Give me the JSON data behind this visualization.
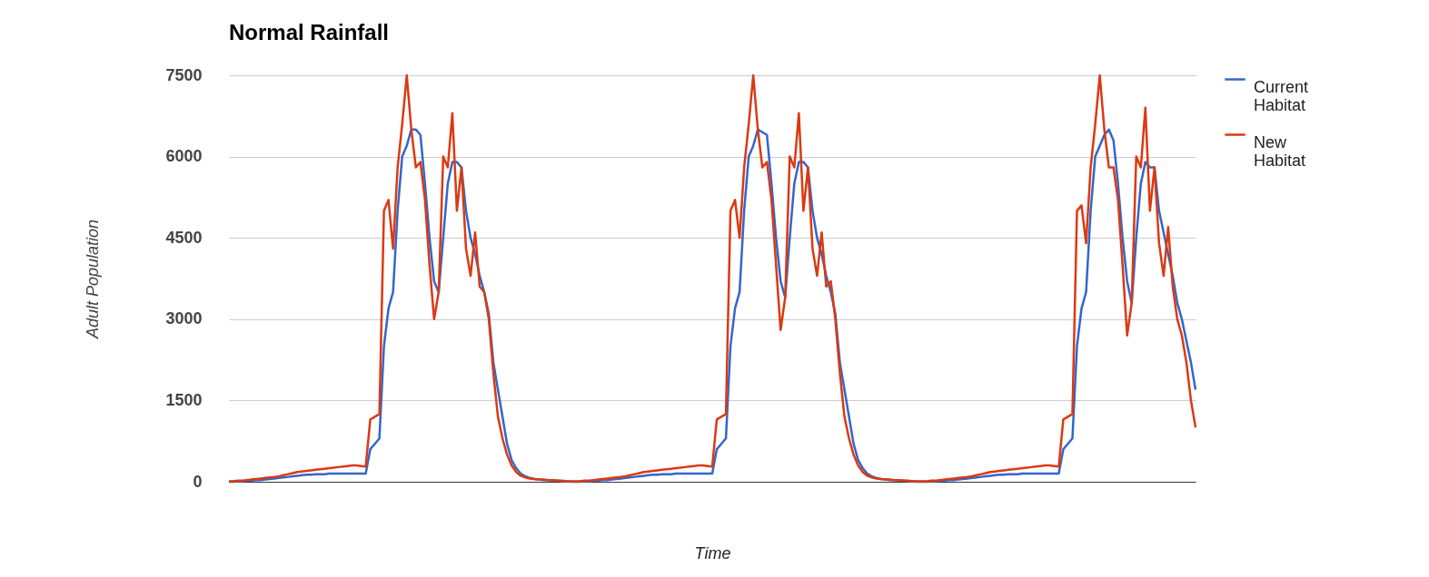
{
  "chart_data": {
    "type": "line",
    "title": "Normal Rainfall",
    "xlabel": "Time",
    "ylabel": "Adult Population",
    "categories": [
      null,
      null,
      null,
      null,
      null,
      null,
      null,
      null,
      null,
      null,
      null,
      null,
      null,
      null,
      null,
      null,
      null,
      null,
      null,
      null,
      null,
      null,
      null,
      null,
      null,
      null,
      null,
      null,
      null,
      null,
      null,
      null,
      null,
      null,
      null,
      null,
      null,
      null,
      null,
      null,
      null,
      null,
      null,
      null,
      null,
      null,
      null,
      null,
      null,
      null,
      null,
      null,
      null,
      null,
      null,
      null,
      null,
      null,
      null,
      null,
      null,
      null,
      null,
      null,
      null,
      null,
      null,
      null,
      null,
      null,
      null,
      null,
      null,
      null,
      null,
      null,
      null,
      null,
      null,
      null,
      null,
      null,
      null,
      null,
      null,
      null,
      null,
      null,
      null,
      null,
      null,
      null,
      null,
      null,
      null,
      null,
      null,
      null,
      null,
      null,
      null,
      null,
      null,
      null,
      null,
      null,
      null,
      null,
      null,
      null,
      null,
      null,
      null,
      null,
      null,
      null,
      null,
      null,
      null,
      null,
      null,
      null,
      null,
      null,
      null,
      null,
      null,
      null,
      null,
      null,
      null,
      null,
      null,
      null,
      null,
      null,
      null,
      null,
      null,
      null,
      null,
      null,
      null,
      null,
      null,
      null,
      null,
      null,
      null,
      null,
      null,
      null,
      null,
      null,
      null,
      null,
      null,
      null,
      null,
      null,
      null,
      null,
      null,
      null,
      null,
      null,
      null,
      null,
      null,
      null,
      null,
      null,
      null,
      null,
      null,
      null,
      null,
      null,
      null,
      null,
      null,
      null,
      null,
      null,
      null,
      null,
      null,
      null,
      null,
      null,
      null,
      null,
      null,
      null,
      null,
      null,
      null,
      null,
      null,
      null,
      null,
      null,
      null,
      null,
      null,
      null,
      null,
      null,
      null,
      null,
      null,
      null,
      null
    ],
    "series": [
      {
        "name": "Current Habitat",
        "color": "#3366cc",
        "values": [
          0,
          0,
          10,
          10,
          20,
          20,
          30,
          30,
          40,
          50,
          60,
          70,
          80,
          90,
          100,
          110,
          120,
          130,
          130,
          140,
          140,
          140,
          150,
          150,
          150,
          150,
          150,
          150,
          150,
          150,
          150,
          600,
          700,
          800,
          2500,
          3200,
          3500,
          5000,
          6000,
          6200,
          6500,
          6500,
          6400,
          5500,
          4500,
          3700,
          3500,
          4500,
          5500,
          5900,
          5900,
          5800,
          5000,
          4500,
          4200,
          3800,
          3500,
          3100,
          2200,
          1700,
          1200,
          700,
          400,
          250,
          150,
          100,
          70,
          50,
          40,
          30,
          30,
          20,
          20,
          10,
          10,
          0,
          0,
          0,
          10,
          10,
          20,
          20,
          30,
          30,
          40,
          50,
          60,
          70,
          80,
          90,
          100,
          110,
          120,
          130,
          130,
          140,
          140,
          140,
          150,
          150,
          150,
          150,
          150,
          150,
          150,
          150,
          150,
          600,
          700,
          800,
          2500,
          3200,
          3500,
          5000,
          6000,
          6200,
          6500,
          6450,
          6400,
          5500,
          4500,
          3700,
          3400,
          4500,
          5500,
          5900,
          5900,
          5800,
          5000,
          4500,
          4200,
          3800,
          3500,
          3100,
          2200,
          1700,
          1200,
          700,
          400,
          250,
          150,
          100,
          70,
          50,
          40,
          30,
          30,
          20,
          20,
          10,
          10,
          0,
          0,
          0,
          10,
          10,
          20,
          20,
          30,
          30,
          40,
          50,
          60,
          70,
          80,
          90,
          100,
          110,
          120,
          130,
          130,
          140,
          140,
          140,
          150,
          150,
          150,
          150,
          150,
          150,
          150,
          150,
          150,
          600,
          700,
          800,
          2500,
          3200,
          3500,
          5000,
          6000,
          6200,
          6400,
          6500,
          6300,
          5500,
          4500,
          3700,
          3300,
          4500,
          5500,
          5900,
          5800,
          5800,
          5000,
          4600,
          4200,
          3800,
          3300,
          3000,
          2600,
          2200,
          1700
        ]
      },
      {
        "name": "New Habitat",
        "color": "#dc3912",
        "values": [
          10,
          10,
          20,
          20,
          30,
          40,
          50,
          60,
          70,
          80,
          90,
          100,
          120,
          140,
          160,
          180,
          190,
          200,
          210,
          220,
          230,
          240,
          250,
          260,
          270,
          280,
          290,
          300,
          300,
          290,
          280,
          1150,
          1200,
          1250,
          5000,
          5200,
          4300,
          5800,
          6600,
          7500,
          6500,
          5800,
          5900,
          5200,
          4000,
          3000,
          3500,
          6000,
          5800,
          6800,
          5000,
          5800,
          4300,
          3800,
          4600,
          3600,
          3500,
          3000,
          2000,
          1200,
          800,
          500,
          300,
          180,
          110,
          80,
          60,
          50,
          40,
          40,
          30,
          30,
          20,
          20,
          10,
          10,
          10,
          10,
          20,
          20,
          30,
          40,
          50,
          60,
          70,
          80,
          90,
          100,
          120,
          140,
          160,
          180,
          190,
          200,
          210,
          220,
          230,
          240,
          250,
          260,
          270,
          280,
          290,
          300,
          300,
          290,
          280,
          1150,
          1200,
          1250,
          5000,
          5200,
          4500,
          5800,
          6600,
          7500,
          6500,
          5800,
          5900,
          5200,
          4000,
          2800,
          3400,
          6000,
          5800,
          6800,
          5000,
          5800,
          4300,
          3800,
          4600,
          3600,
          3700,
          3000,
          2000,
          1200,
          800,
          500,
          300,
          180,
          110,
          80,
          60,
          50,
          40,
          40,
          30,
          30,
          20,
          20,
          10,
          10,
          10,
          10,
          20,
          20,
          30,
          40,
          50,
          60,
          70,
          80,
          90,
          100,
          120,
          140,
          160,
          180,
          190,
          200,
          210,
          220,
          230,
          240,
          250,
          260,
          270,
          280,
          290,
          300,
          300,
          290,
          280,
          1150,
          1200,
          1250,
          5000,
          5100,
          4400,
          5800,
          6600,
          7500,
          6500,
          5800,
          5800,
          5200,
          4000,
          2700,
          3300,
          6000,
          5800,
          6900,
          5000,
          5800,
          4400,
          3800,
          4700,
          3600,
          3000,
          2700,
          2200,
          1500,
          1000
        ]
      }
    ],
    "ylim": [
      0,
      7500
    ],
    "yticks": [
      0,
      1500,
      3000,
      4500,
      6000,
      7500
    ],
    "grid": "y",
    "legend": "top right",
    "tick_labels": "y",
    "marker": "none",
    "line_style": "solid"
  }
}
